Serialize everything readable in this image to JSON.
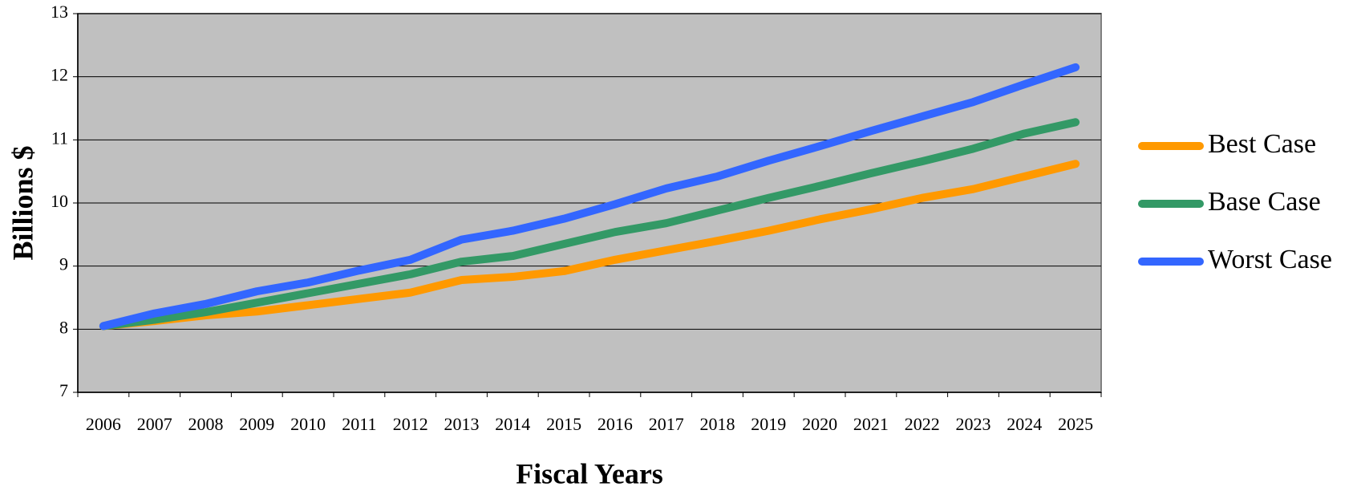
{
  "chart_data": {
    "type": "line",
    "x_label": "Fiscal Years",
    "y_label": "Billions $",
    "categories": [
      "2006",
      "2007",
      "2008",
      "2009",
      "2010",
      "2011",
      "2012",
      "2013",
      "2014",
      "2015",
      "2016",
      "2017",
      "2018",
      "2019",
      "2020",
      "2021",
      "2022",
      "2023",
      "2024",
      "2025"
    ],
    "series": [
      {
        "name": "Best Case",
        "color": "#ff9900",
        "values": [
          8.05,
          8.13,
          8.22,
          8.28,
          8.38,
          8.48,
          8.58,
          8.78,
          8.83,
          8.92,
          9.1,
          9.25,
          9.4,
          9.56,
          9.74,
          9.9,
          10.08,
          10.22,
          10.42,
          10.62
        ]
      },
      {
        "name": "Base Case",
        "color": "#339966",
        "values": [
          8.05,
          8.15,
          8.27,
          8.42,
          8.57,
          8.72,
          8.87,
          9.07,
          9.16,
          9.35,
          9.54,
          9.68,
          9.88,
          10.08,
          10.27,
          10.47,
          10.66,
          10.86,
          11.1,
          11.28
        ]
      },
      {
        "name": "Worst Case",
        "color": "#3366ff",
        "values": [
          8.05,
          8.25,
          8.4,
          8.6,
          8.74,
          8.93,
          9.1,
          9.42,
          9.56,
          9.75,
          9.98,
          10.23,
          10.42,
          10.67,
          10.9,
          11.14,
          11.37,
          11.6,
          11.88,
          12.15
        ]
      }
    ],
    "ylim": [
      7,
      13
    ],
    "yticks": [
      7,
      8,
      9,
      10,
      11,
      12,
      13
    ],
    "grid": true,
    "legend": "right"
  }
}
